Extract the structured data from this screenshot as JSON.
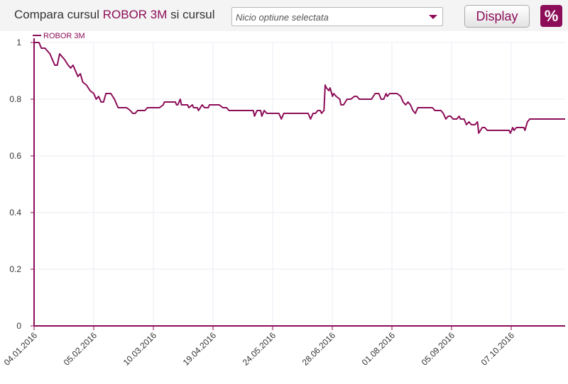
{
  "toolbar": {
    "title_prefix": "Compara cursul",
    "title_highlight": "ROBOR 3M",
    "title_suffix": "si cursul",
    "select_value": "Nicio optiune selectata",
    "display_label": "Display",
    "percent_label": "%"
  },
  "colors": {
    "accent": "#8c0d58"
  },
  "chart_data": {
    "type": "line",
    "title": "",
    "xlabel": "",
    "ylabel": "",
    "ylim": [
      0,
      1
    ],
    "yticks": [
      "0",
      "0.2",
      "0.4",
      "0.6",
      "0.8",
      "1"
    ],
    "xticks": [
      "04.01.2016",
      "05.02.2016",
      "10.03.2016",
      "19.04.2016",
      "24.05.2016",
      "28.06.2016",
      "01.08.2016",
      "05.09.2016",
      "07.10.2016"
    ],
    "grid": true,
    "legend": "top-left",
    "series": [
      {
        "name": "ROBOR 3M",
        "points": [
          [
            0,
            1.0
          ],
          [
            4,
            1.0
          ],
          [
            6,
            0.98
          ],
          [
            9,
            0.98
          ],
          [
            13,
            0.96
          ],
          [
            17,
            0.92
          ],
          [
            19,
            0.92
          ],
          [
            21,
            0.96
          ],
          [
            25,
            0.94
          ],
          [
            28,
            0.92
          ],
          [
            30,
            0.91
          ],
          [
            32,
            0.92
          ],
          [
            34,
            0.9
          ],
          [
            36,
            0.88
          ],
          [
            38,
            0.89
          ],
          [
            40,
            0.86
          ],
          [
            43,
            0.85
          ],
          [
            46,
            0.83
          ],
          [
            49,
            0.82
          ],
          [
            51,
            0.8
          ],
          [
            53,
            0.81
          ],
          [
            55,
            0.79
          ],
          [
            57,
            0.79
          ],
          [
            59,
            0.82
          ],
          [
            63,
            0.82
          ],
          [
            66,
            0.8
          ],
          [
            69,
            0.77
          ],
          [
            76,
            0.77
          ],
          [
            79,
            0.76
          ],
          [
            81,
            0.75
          ],
          [
            83,
            0.75
          ],
          [
            85,
            0.76
          ],
          [
            91,
            0.76
          ],
          [
            93,
            0.77
          ],
          [
            103,
            0.77
          ],
          [
            106,
            0.78
          ],
          [
            107,
            0.79
          ],
          [
            116,
            0.79
          ],
          [
            117,
            0.78
          ],
          [
            118,
            0.78
          ],
          [
            120,
            0.8
          ],
          [
            121,
            0.78
          ],
          [
            126,
            0.78
          ],
          [
            127,
            0.77
          ],
          [
            130,
            0.78
          ],
          [
            131,
            0.77
          ],
          [
            134,
            0.77
          ],
          [
            135,
            0.76
          ],
          [
            138,
            0.78
          ],
          [
            140,
            0.77
          ],
          [
            143,
            0.77
          ],
          [
            144,
            0.78
          ],
          [
            152,
            0.78
          ],
          [
            155,
            0.77
          ],
          [
            158,
            0.77
          ],
          [
            160,
            0.76
          ],
          [
            169,
            0.76
          ],
          [
            170,
            0.76
          ],
          [
            180,
            0.76
          ],
          [
            181,
            0.74
          ],
          [
            183,
            0.76
          ],
          [
            186,
            0.76
          ],
          [
            187,
            0.74
          ],
          [
            189,
            0.76
          ],
          [
            191,
            0.75
          ],
          [
            201,
            0.75
          ],
          [
            203,
            0.73
          ],
          [
            205,
            0.75
          ],
          [
            225,
            0.75
          ],
          [
            227,
            0.73
          ],
          [
            229,
            0.75
          ],
          [
            231,
            0.75
          ],
          [
            233,
            0.76
          ],
          [
            235,
            0.76
          ],
          [
            236,
            0.75
          ],
          [
            238,
            0.76
          ],
          [
            239,
            0.85
          ],
          [
            240,
            0.84
          ],
          [
            242,
            0.83
          ],
          [
            243,
            0.84
          ],
          [
            245,
            0.81
          ],
          [
            246,
            0.82
          ],
          [
            248,
            0.81
          ],
          [
            251,
            0.8
          ],
          [
            252,
            0.78
          ],
          [
            254,
            0.78
          ],
          [
            257,
            0.8
          ],
          [
            260,
            0.8
          ],
          [
            263,
            0.81
          ],
          [
            265,
            0.81
          ],
          [
            267,
            0.8
          ],
          [
            277,
            0.8
          ],
          [
            280,
            0.82
          ],
          [
            283,
            0.82
          ],
          [
            285,
            0.8
          ],
          [
            287,
            0.8
          ],
          [
            289,
            0.82
          ],
          [
            290,
            0.81
          ],
          [
            292,
            0.82
          ],
          [
            298,
            0.82
          ],
          [
            301,
            0.81
          ],
          [
            303,
            0.79
          ],
          [
            305,
            0.78
          ],
          [
            307,
            0.79
          ],
          [
            309,
            0.78
          ],
          [
            311,
            0.76
          ],
          [
            313,
            0.75
          ],
          [
            315,
            0.77
          ],
          [
            327,
            0.77
          ],
          [
            329,
            0.76
          ],
          [
            334,
            0.76
          ],
          [
            336,
            0.75
          ],
          [
            338,
            0.73
          ],
          [
            340,
            0.74
          ],
          [
            342,
            0.74
          ],
          [
            344,
            0.73
          ],
          [
            347,
            0.73
          ],
          [
            349,
            0.74
          ],
          [
            350,
            0.73
          ],
          [
            353,
            0.73
          ],
          [
            355,
            0.71
          ],
          [
            357,
            0.72
          ],
          [
            359,
            0.71
          ],
          [
            362,
            0.71
          ],
          [
            364,
            0.72
          ],
          [
            365,
            0.68
          ],
          [
            368,
            0.7
          ],
          [
            370,
            0.7
          ],
          [
            372,
            0.69
          ],
          [
            390,
            0.69
          ],
          [
            391,
            0.68
          ],
          [
            393,
            0.7
          ],
          [
            394,
            0.69
          ],
          [
            396,
            0.7
          ],
          [
            402,
            0.7
          ],
          [
            403,
            0.69
          ],
          [
            405,
            0.72
          ],
          [
            407,
            0.73
          ],
          [
            436,
            0.73
          ]
        ]
      }
    ]
  }
}
